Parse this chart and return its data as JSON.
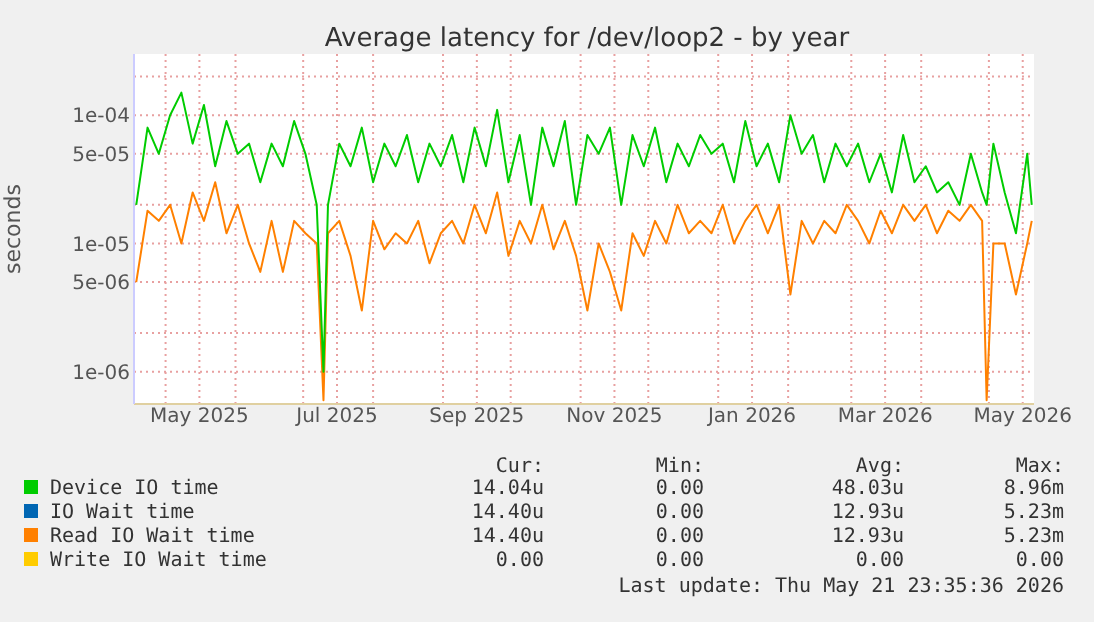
{
  "chart_data": {
    "type": "line",
    "title": "Average latency for /dev/loop2 - by year",
    "ylabel": "seconds",
    "log": "y",
    "grid": true,
    "legend": "bottom",
    "marker": "none",
    "line_style": "solid",
    "xlim": [
      "2025-04-17",
      "2026-05-21"
    ],
    "xticks": [
      {
        "value": "2025-05-01",
        "label": null
      },
      {
        "value": "2025-05-16",
        "label": "May 2025"
      },
      {
        "value": "2025-06-01",
        "label": null
      },
      {
        "value": "2025-07-01",
        "label": null
      },
      {
        "value": "2025-07-16",
        "label": "Jul 2025"
      },
      {
        "value": "2025-08-01",
        "label": null
      },
      {
        "value": "2025-09-01",
        "label": null
      },
      {
        "value": "2025-09-16",
        "label": "Sep 2025"
      },
      {
        "value": "2025-10-01",
        "label": null
      },
      {
        "value": "2025-11-01",
        "label": null
      },
      {
        "value": "2025-11-16",
        "label": "Nov 2025"
      },
      {
        "value": "2025-12-01",
        "label": null
      },
      {
        "value": "2026-01-01",
        "label": null
      },
      {
        "value": "2026-01-16",
        "label": "Jan 2026"
      },
      {
        "value": "2026-02-01",
        "label": null
      },
      {
        "value": "2026-03-01",
        "label": null
      },
      {
        "value": "2026-03-16",
        "label": "Mar 2026"
      },
      {
        "value": "2026-04-01",
        "label": null
      },
      {
        "value": "2026-05-01",
        "label": null
      },
      {
        "value": "2026-05-16",
        "label": "May 2026"
      }
    ],
    "ylim": [
      5.6e-07,
      0.0003
    ],
    "yticks": [
      {
        "value": 1e-06,
        "label": "1e-06"
      },
      {
        "value": 2e-06,
        "label": null
      },
      {
        "value": 5e-06,
        "label": "5e-06"
      },
      {
        "value": 1e-05,
        "label": "1e-05"
      },
      {
        "value": 2e-05,
        "label": null
      },
      {
        "value": 5e-05,
        "label": "5e-05"
      },
      {
        "value": 0.0001,
        "label": "1e-04"
      },
      {
        "value": 0.0002,
        "label": null
      }
    ],
    "x": [
      "2025-04-18",
      "2025-04-23",
      "2025-04-28",
      "2025-05-03",
      "2025-05-08",
      "2025-05-13",
      "2025-05-18",
      "2025-05-23",
      "2025-05-28",
      "2025-06-02",
      "2025-06-07",
      "2025-06-12",
      "2025-06-17",
      "2025-06-22",
      "2025-06-27",
      "2025-07-02",
      "2025-07-07",
      "2025-07-10",
      "2025-07-12",
      "2025-07-17",
      "2025-07-22",
      "2025-07-27",
      "2025-08-01",
      "2025-08-06",
      "2025-08-11",
      "2025-08-16",
      "2025-08-21",
      "2025-08-26",
      "2025-08-31",
      "2025-09-05",
      "2025-09-10",
      "2025-09-15",
      "2025-09-20",
      "2025-09-25",
      "2025-09-30",
      "2025-10-05",
      "2025-10-10",
      "2025-10-15",
      "2025-10-20",
      "2025-10-25",
      "2025-10-30",
      "2025-11-04",
      "2025-11-09",
      "2025-11-14",
      "2025-11-19",
      "2025-11-24",
      "2025-11-29",
      "2025-12-04",
      "2025-12-09",
      "2025-12-14",
      "2025-12-19",
      "2025-12-24",
      "2025-12-29",
      "2026-01-03",
      "2026-01-08",
      "2026-01-13",
      "2026-01-18",
      "2026-01-23",
      "2026-01-28",
      "2026-02-02",
      "2026-02-07",
      "2026-02-12",
      "2026-02-17",
      "2026-02-22",
      "2026-02-27",
      "2026-03-04",
      "2026-03-09",
      "2026-03-14",
      "2026-03-19",
      "2026-03-24",
      "2026-03-29",
      "2026-04-03",
      "2026-04-08",
      "2026-04-13",
      "2026-04-18",
      "2026-04-23",
      "2026-04-28",
      "2026-04-30",
      "2026-05-03",
      "2026-05-08",
      "2026-05-13",
      "2026-05-18",
      "2026-05-20"
    ],
    "series": [
      {
        "name": "Device IO time",
        "color": "#00cc00",
        "values": [
          2e-05,
          8e-05,
          5e-05,
          0.0001,
          0.00015,
          6e-05,
          0.00012,
          4e-05,
          9e-05,
          5e-05,
          6e-05,
          3e-05,
          6e-05,
          4e-05,
          9e-05,
          5e-05,
          2e-05,
          1e-06,
          2e-05,
          6e-05,
          4e-05,
          8e-05,
          3e-05,
          6e-05,
          4e-05,
          7e-05,
          3e-05,
          6e-05,
          4e-05,
          7e-05,
          3e-05,
          8e-05,
          4e-05,
          0.00011,
          3e-05,
          7e-05,
          2e-05,
          8e-05,
          4e-05,
          9e-05,
          2e-05,
          7e-05,
          5e-05,
          8e-05,
          2e-05,
          7e-05,
          4e-05,
          8e-05,
          3e-05,
          6e-05,
          4e-05,
          7e-05,
          5e-05,
          6e-05,
          3e-05,
          9e-05,
          4e-05,
          6e-05,
          3e-05,
          0.0001,
          5e-05,
          7e-05,
          3e-05,
          6e-05,
          4e-05,
          6e-05,
          3e-05,
          5e-05,
          2.5e-05,
          7e-05,
          3e-05,
          4e-05,
          2.5e-05,
          3e-05,
          2e-05,
          5e-05,
          2.5e-05,
          2e-05,
          6e-05,
          2.5e-05,
          1.2e-05,
          5e-05,
          2e-05
        ]
      },
      {
        "name": "IO Wait time",
        "color": "#0066b3",
        "values": [
          null,
          null,
          null,
          null,
          null,
          null,
          null,
          null,
          null,
          null,
          null,
          null,
          null,
          null,
          null,
          null,
          null,
          null,
          null,
          null,
          null,
          null,
          null,
          null,
          null,
          null,
          null,
          null,
          null,
          null,
          null,
          null,
          null,
          null,
          null,
          null,
          null,
          null,
          null,
          null,
          null,
          null,
          null,
          null,
          null,
          null,
          null,
          null,
          null,
          null,
          null,
          null,
          null,
          null,
          null,
          null,
          null,
          null,
          null,
          null,
          null,
          null,
          null,
          null,
          null,
          null,
          null,
          null,
          null,
          null,
          null,
          null,
          null,
          null,
          null,
          null,
          null,
          null,
          null,
          null,
          null,
          null,
          null
        ]
      },
      {
        "name": "Read IO Wait time",
        "color": "#ff8000",
        "values": [
          5e-06,
          1.8e-05,
          1.5e-05,
          2e-05,
          1e-05,
          2.5e-05,
          1.5e-05,
          3e-05,
          1.2e-05,
          2e-05,
          1e-05,
          6e-06,
          1.5e-05,
          6e-06,
          1.5e-05,
          1.2e-05,
          1e-05,
          6e-07,
          1.2e-05,
          1.5e-05,
          8e-06,
          3e-06,
          1.5e-05,
          9e-06,
          1.2e-05,
          1e-05,
          1.5e-05,
          7e-06,
          1.2e-05,
          1.5e-05,
          1e-05,
          2e-05,
          1.2e-05,
          2.5e-05,
          8e-06,
          1.5e-05,
          1e-05,
          2e-05,
          9e-06,
          1.5e-05,
          8e-06,
          3e-06,
          1e-05,
          6e-06,
          3e-06,
          1.2e-05,
          8e-06,
          1.5e-05,
          1e-05,
          2e-05,
          1.2e-05,
          1.5e-05,
          1.2e-05,
          2e-05,
          1e-05,
          1.5e-05,
          2e-05,
          1.2e-05,
          2e-05,
          4e-06,
          1.5e-05,
          1e-05,
          1.5e-05,
          1.2e-05,
          2e-05,
          1.5e-05,
          1e-05,
          1.8e-05,
          1.2e-05,
          2e-05,
          1.5e-05,
          2e-05,
          1.2e-05,
          1.8e-05,
          1.5e-05,
          2e-05,
          1.5e-05,
          6e-07,
          1e-05,
          1e-05,
          4e-06,
          1e-05,
          1.5e-05
        ]
      },
      {
        "name": "Write IO Wait time",
        "color": "#ffcc00",
        "values": [
          null,
          null,
          null,
          null,
          null,
          null,
          null,
          null,
          null,
          null,
          null,
          null,
          null,
          null,
          null,
          null,
          null,
          null,
          null,
          null,
          null,
          null,
          null,
          null,
          null,
          null,
          null,
          null,
          null,
          null,
          null,
          null,
          null,
          null,
          null,
          null,
          null,
          null,
          null,
          null,
          null,
          null,
          null,
          null,
          null,
          null,
          null,
          null,
          null,
          null,
          null,
          null,
          null,
          null,
          null,
          null,
          null,
          null,
          null,
          null,
          null,
          null,
          null,
          null,
          null,
          null,
          null,
          null,
          null,
          null,
          null,
          null,
          null,
          null,
          null,
          null,
          null,
          null,
          null,
          null,
          null,
          null,
          null
        ]
      }
    ],
    "annotations": [
      "Cur:",
      "Min:",
      "Avg:",
      "Max:",
      "14.04u",
      "0.00",
      "48.03u",
      "8.96m",
      "14.40u",
      "0.00",
      "12.93u",
      "5.23m",
      "14.40u",
      "0.00",
      "12.93u",
      "5.23m",
      "0.00",
      "0.00",
      "0.00",
      "0.00",
      "Last update: Thu May 21 23:35:36 2026"
    ]
  }
}
